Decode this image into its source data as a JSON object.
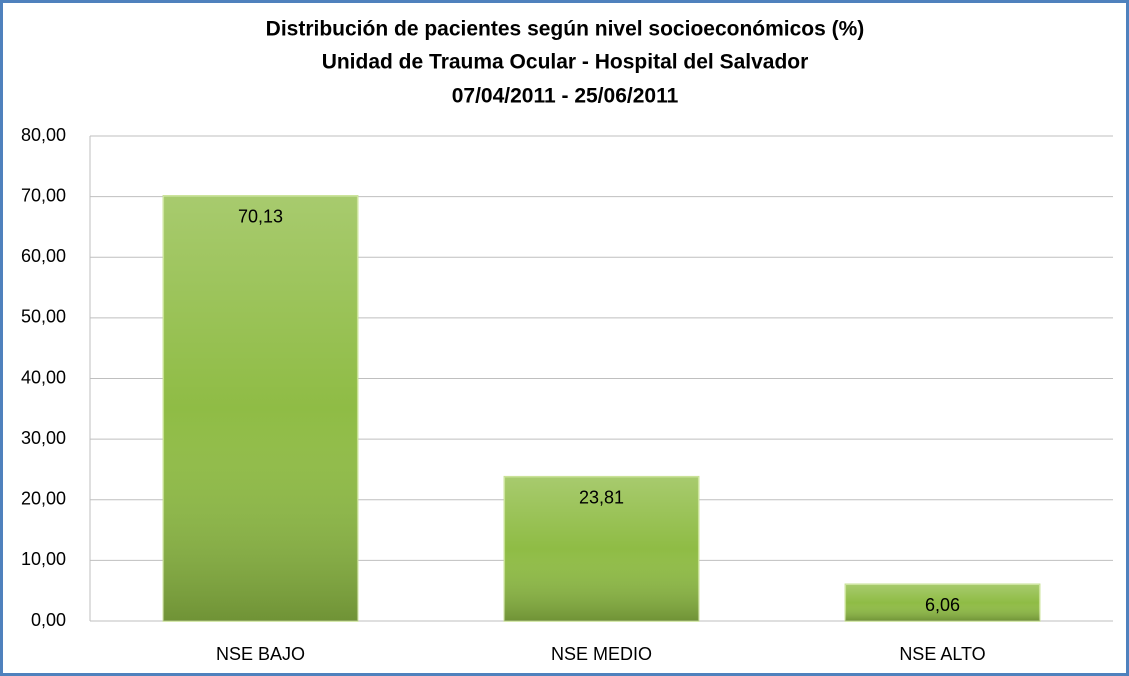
{
  "chart_data": {
    "type": "bar",
    "title": "Distribución de  pacientes según nivel socioeconómicos (%)",
    "subtitle": [
      "Unidad de Trauma Ocular - Hospital del Salvador",
      "07/04/2011 - 25/06/2011"
    ],
    "categories": [
      "NSE BAJO",
      "NSE MEDIO",
      "NSE ALTO"
    ],
    "values": [
      70.13,
      23.81,
      6.06
    ],
    "value_labels": [
      "70,13",
      "23,81",
      "6,06"
    ],
    "color": "#8fbc45",
    "ylim": [
      0,
      80
    ],
    "yticks": [
      {
        "value": 0,
        "label": "0,00"
      },
      {
        "value": 10,
        "label": "10,00"
      },
      {
        "value": 20,
        "label": "20,00"
      },
      {
        "value": 30,
        "label": "30,00"
      },
      {
        "value": 40,
        "label": "40,00"
      },
      {
        "value": 50,
        "label": "50,00"
      },
      {
        "value": 60,
        "label": "60,00"
      },
      {
        "value": 70,
        "label": "70,00"
      },
      {
        "value": 80,
        "label": "80,00"
      }
    ],
    "grid": true
  }
}
